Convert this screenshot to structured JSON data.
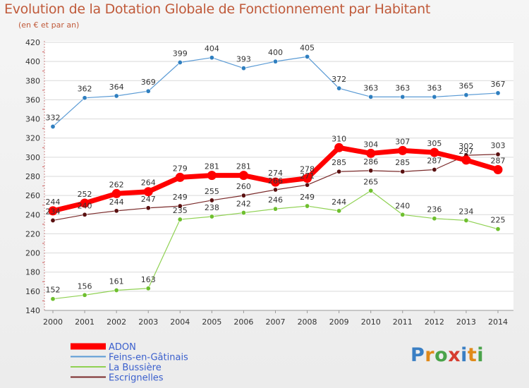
{
  "header": {
    "title": "Evolution de la Dotation Globale de Fonctionnement par Habitant",
    "subtitle": "(en € et par an)"
  },
  "logo": {
    "text": "Proxiti",
    "letters": [
      "P",
      "r",
      "o",
      "x",
      "i",
      "t",
      "i"
    ]
  },
  "chart_data": {
    "type": "line",
    "title": "Evolution de la Dotation Globale de Fonctionnement par Habitant",
    "subtitle": "(en € et par an)",
    "xlabel": "",
    "ylabel": "",
    "x": [
      "2000",
      "2001",
      "2002",
      "2003",
      "2004",
      "2005",
      "2006",
      "2007",
      "2008",
      "2009",
      "2010",
      "2011",
      "2012",
      "2013",
      "2014"
    ],
    "ylim": [
      140,
      420
    ],
    "yticks": [
      140,
      160,
      180,
      200,
      220,
      240,
      260,
      280,
      300,
      320,
      340,
      360,
      380,
      400,
      420
    ],
    "grid": "horizontal",
    "legend_position": "bottom-left",
    "series": [
      {
        "name": "ADON",
        "color": "#ff0000",
        "marker_color": "#ff0000",
        "emphasis": true,
        "values": [
          244,
          252,
          262,
          264,
          279,
          281,
          281,
          274,
          278,
          310,
          304,
          307,
          305,
          297,
          287
        ]
      },
      {
        "name": "Feins-en-Gâtinais",
        "color": "#5b9bd5",
        "marker_color": "#2f7fc0",
        "emphasis": false,
        "values": [
          332,
          362,
          364,
          369,
          399,
          404,
          393,
          400,
          405,
          372,
          363,
          363,
          363,
          365,
          367
        ]
      },
      {
        "name": "La Bussière",
        "color": "#8fd152",
        "marker_color": "#6ebf2e",
        "emphasis": false,
        "values": [
          152,
          156,
          161,
          163,
          235,
          238,
          242,
          246,
          249,
          244,
          265,
          240,
          236,
          234,
          225
        ]
      },
      {
        "name": "Escrignelles",
        "color": "#7a2a2a",
        "marker_color": "#5a1010",
        "emphasis": false,
        "values": [
          234,
          240,
          244,
          247,
          249,
          255,
          260,
          266,
          271,
          285,
          286,
          285,
          287,
          302,
          303
        ]
      }
    ]
  }
}
